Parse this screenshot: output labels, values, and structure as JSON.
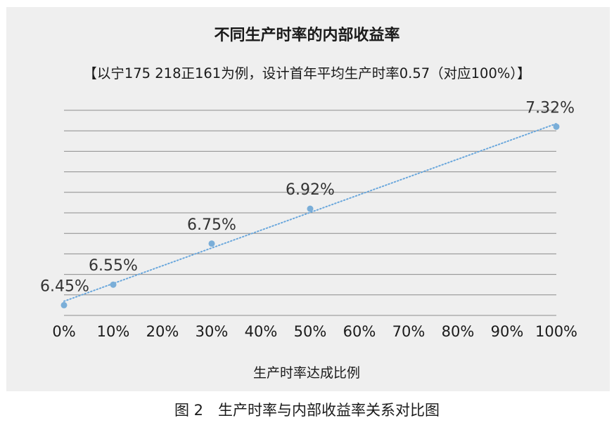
{
  "chart_data": {
    "type": "scatter",
    "title": "不同生产时率的内部收益率",
    "subtitle": "【以宁175 218正161为例，设计首年平均生产时率0.57（对应100%）】",
    "xlabel": "生产时率达成比例",
    "ylabel": "",
    "x_ticks": [
      "0%",
      "10%",
      "20%",
      "30%",
      "40%",
      "50%",
      "60%",
      "70%",
      "80%",
      "90%",
      "100%"
    ],
    "xlim": [
      0,
      100
    ],
    "ylim": [
      6.4,
      7.4
    ],
    "grid": true,
    "trendline": "linear (dotted)",
    "series": [
      {
        "x": [
          0,
          10,
          30,
          50,
          100
        ],
        "y": [
          6.45,
          6.55,
          6.75,
          6.92,
          7.32
        ],
        "labels": [
          "6.45%",
          "6.55%",
          "6.75%",
          "6.92%",
          "7.32%"
        ]
      }
    ]
  },
  "colors": {
    "point": "#7aaed8",
    "trendline": "#6aa7dc",
    "gridline": "#8c8c8c",
    "panel_background": "#efefef"
  },
  "figure_caption": "图 2　生产时率与内部收益率关系对比图"
}
